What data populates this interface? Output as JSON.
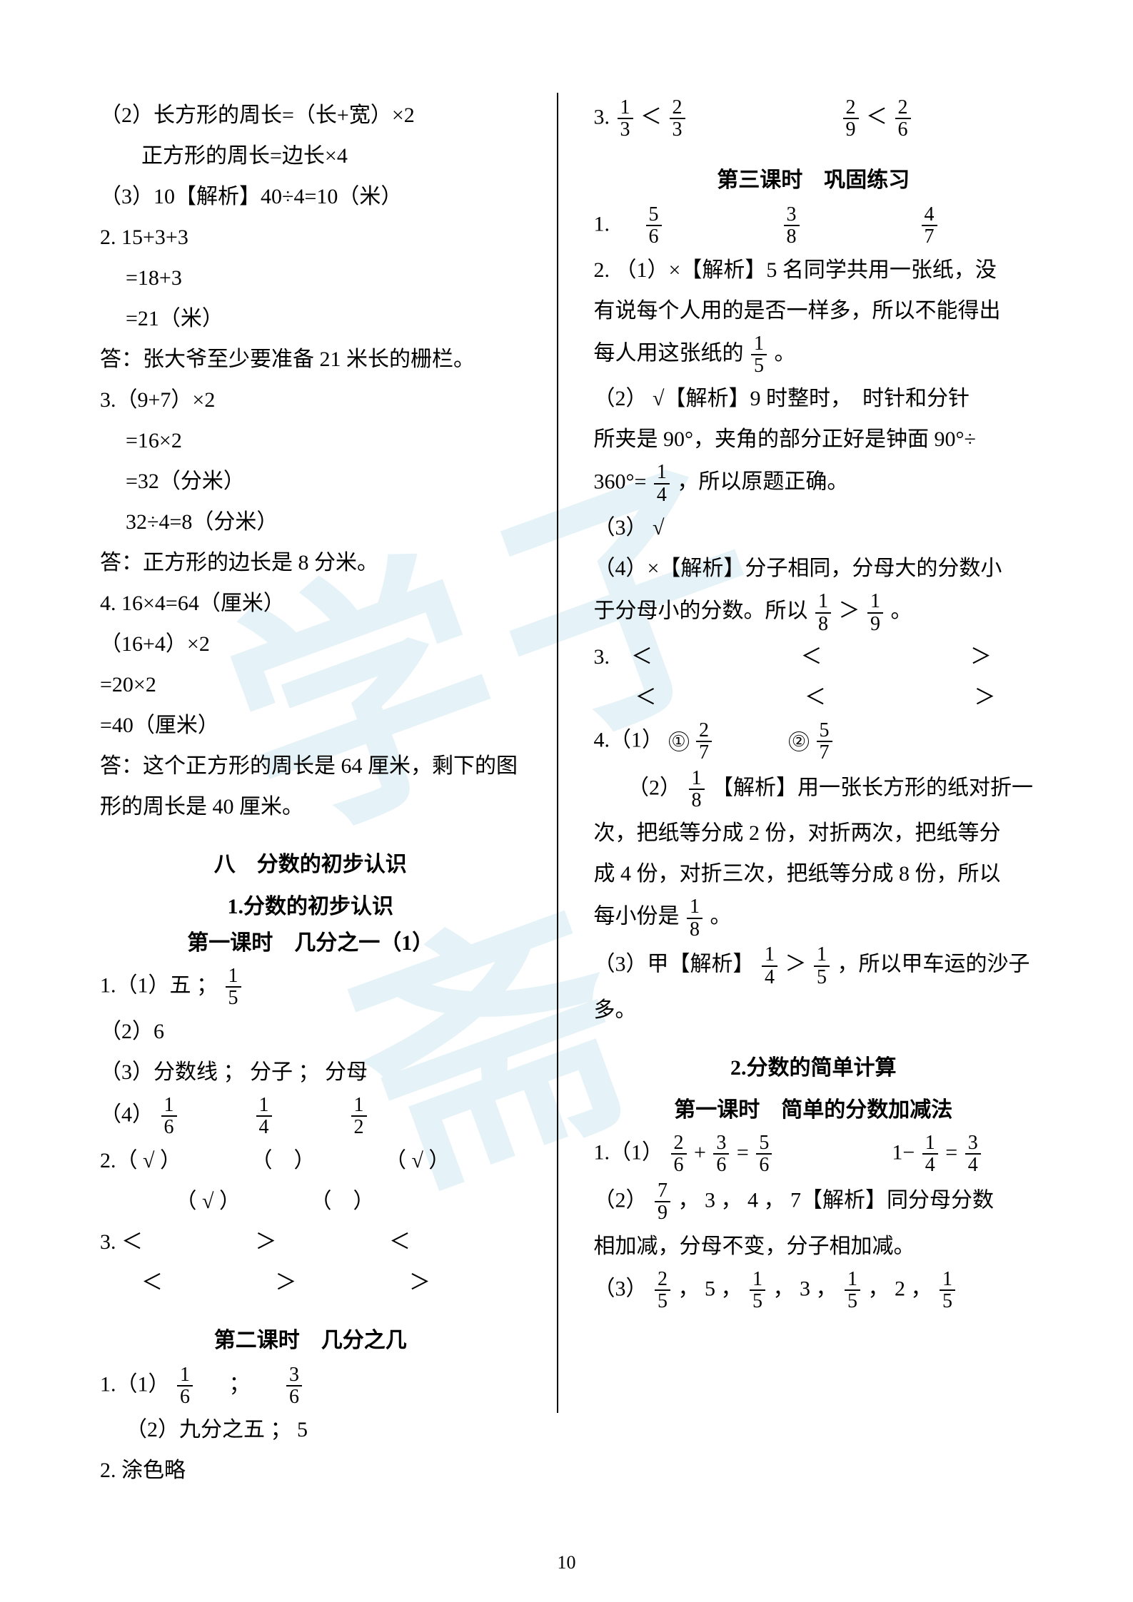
{
  "page_number": "10",
  "watermark": "学子斋",
  "colors": {
    "text": "#000000",
    "bg": "#ffffff",
    "watermark": "rgba(180,220,235,0.35)"
  },
  "fontsize": {
    "body": 30,
    "fraction": 28,
    "pagenum": 26,
    "watermark": 360
  },
  "leftCol": {
    "l1": "（2）长方形的周长=（长+宽）×2",
    "l2": "正方形的周长=边长×4",
    "l3": "（3）10【解析】40÷4=10（米）",
    "l4": "2. 15+3+3",
    "l5": "=18+3",
    "l6": "=21（米）",
    "l7": "答：张大爷至少要准备 21 米长的栅栏。",
    "l8": "3.（9+7）×2",
    "l9": "=16×2",
    "l10": "=32（分米）",
    "l11": "32÷4=8（分米）",
    "l12": "答：正方形的边长是 8 分米。",
    "l13": "4. 16×4=64（厘米）",
    "l14": "（16+4）×2",
    "l15": "=20×2",
    "l16": "=40（厘米）",
    "l17": "答：这个正方形的周长是 64 厘米，剩下的图",
    "l18": "形的周长是 40 厘米。",
    "sec1": "八　分数的初步认识",
    "sec2": "1.分数的初步认识",
    "sec3": "第一课时　几分之一（1）",
    "p1_1a": "1.（1）五 ；",
    "p1_2": "（2）6",
    "p1_3": "（3）分数线 ； 分子 ； 分母",
    "p1_4a": "（4）",
    "p2a": "2.（ √ ）",
    "p2b": "（　）",
    "p2c": "（ √ ）",
    "p2d": "（ √ ）",
    "p2e": "（　）",
    "p3row1": {
      "a": "3.  ＜",
      "b": "＞",
      "c": "＜"
    },
    "p3row2": {
      "a": "＜",
      "b": "＞",
      "c": "＞"
    },
    "sec4": "第二课时　几分之几",
    "q1a": "1.（1）",
    "q1b": "；",
    "q2": "（2）九分之五 ； 5",
    "q3": "2. 涂色略",
    "fracs": {
      "one_fifth": {
        "n": "1",
        "d": "5"
      },
      "one_sixth": {
        "n": "1",
        "d": "6"
      },
      "one_fourth": {
        "n": "1",
        "d": "4"
      },
      "one_half": {
        "n": "1",
        "d": "2"
      },
      "three_sixth": {
        "n": "3",
        "d": "6"
      }
    }
  },
  "rightCol": {
    "r0a": "3.",
    "r0f1": {
      "n": "1",
      "d": "3"
    },
    "r0lt1": "＜",
    "r0f2": {
      "n": "2",
      "d": "3"
    },
    "r0f3": {
      "n": "2",
      "d": "9"
    },
    "r0lt2": "＜",
    "r0f4": {
      "n": "2",
      "d": "6"
    },
    "secA": "第三课时　巩固练习",
    "r1a": "1.",
    "r1f1": {
      "n": "5",
      "d": "6"
    },
    "r1f2": {
      "n": "3",
      "d": "8"
    },
    "r1f3": {
      "n": "4",
      "d": "7"
    },
    "r2a": "2. （1）×【解析】5 名同学共用一张纸，没",
    "r2b": "有说每个人用的是否一样多，所以不能得出",
    "r2c_a": "每人用这张纸的",
    "r2c_f": {
      "n": "1",
      "d": "5"
    },
    "r2c_b": "。",
    "r3a": "（2） √【解析】9 时整时，　时针和分针",
    "r3b": "所夹是 90°，夹角的部分正好是钟面 90°÷",
    "r3c_a": "360°=",
    "r3c_f": {
      "n": "1",
      "d": "4"
    },
    "r3c_b": "，所以原题正确。",
    "r4": "（3） √",
    "r5": "（4）×【解析】分子相同，分母大的分数小",
    "r5b_a": "于分母小的分数。所以",
    "r5b_f1": {
      "n": "1",
      "d": "8"
    },
    "r5b_gt": "＞",
    "r5b_f2": {
      "n": "1",
      "d": "9"
    },
    "r5b_b": "。",
    "r6row1": {
      "a": "3.　＜",
      "b": "＜",
      "c": "＞"
    },
    "r6row2": {
      "a": "＜",
      "b": "＜",
      "c": "＞"
    },
    "r7a": "4.（1）",
    "r7c1": "①",
    "r7f1": {
      "n": "2",
      "d": "7"
    },
    "r7c2": "②",
    "r7f2": {
      "n": "5",
      "d": "7"
    },
    "r8a": "（2）",
    "r8f": {
      "n": "1",
      "d": "8"
    },
    "r8b": "【解析】用一张长方形的纸对折一",
    "r8c": "次，把纸等分成 2 份，对折两次，把纸等分",
    "r8d": "成 4 份，对折三次，把纸等分成 8 份，所以",
    "r8e_a": "每小份是",
    "r8e_f": {
      "n": "1",
      "d": "8"
    },
    "r8e_b": "。",
    "r9a": "（3）甲【解析】",
    "r9f1": {
      "n": "1",
      "d": "4"
    },
    "r9gt": "＞",
    "r9f2": {
      "n": "1",
      "d": "5"
    },
    "r9b": "，所以甲车运的沙子",
    "r9c": "多。",
    "secB": "2.分数的简单计算",
    "secC": "第一课时　简单的分数加减法",
    "s1a": "1.（1）",
    "s1f1": {
      "n": "2",
      "d": "6"
    },
    "s1p": "+",
    "s1f2": {
      "n": "3",
      "d": "6"
    },
    "s1e": "=",
    "s1f3": {
      "n": "5",
      "d": "6"
    },
    "s1g_a": "1−",
    "s1g_f1": {
      "n": "1",
      "d": "4"
    },
    "s1g_e": "=",
    "s1g_f2": {
      "n": "3",
      "d": "4"
    },
    "s2a": "（2）",
    "s2f": {
      "n": "7",
      "d": "9"
    },
    "s2b": " ， 3 ， 4 ， 7【解析】同分母分数",
    "s2c": "相加减，分母不变，分子相加减。",
    "s3a": "（3）",
    "s3f1": {
      "n": "2",
      "d": "5"
    },
    "s3b": " ， 5 ， ",
    "s3f2": {
      "n": "1",
      "d": "5"
    },
    "s3c": " ， 3 ， ",
    "s3f3": {
      "n": "1",
      "d": "5"
    },
    "s3d": " ，  2  ， ",
    "s3f4": {
      "n": "1",
      "d": "5"
    }
  }
}
